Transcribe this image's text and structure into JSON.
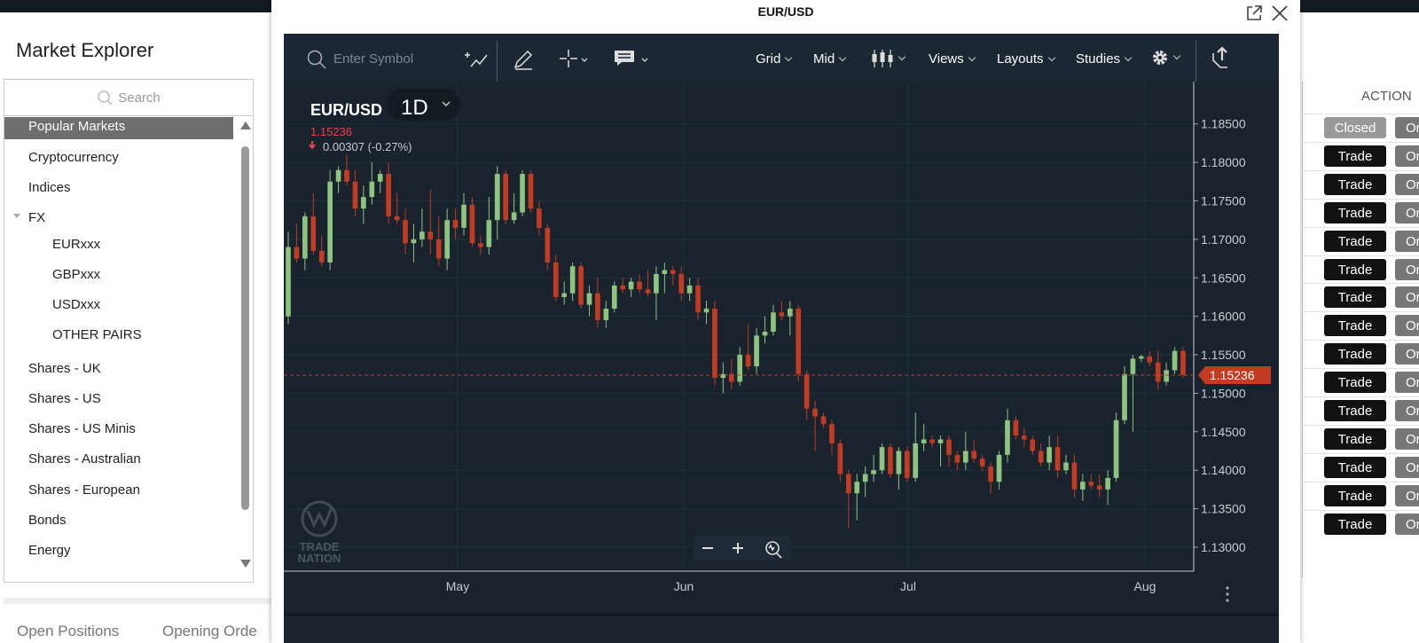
{
  "explorer": {
    "title": "Market Explorer",
    "search_placeholder": "Search",
    "items": [
      {
        "label": "Popular Markets",
        "level": 0,
        "selected": true
      },
      {
        "label": "Cryptocurrency",
        "level": 0
      },
      {
        "label": "Indices",
        "level": 0
      },
      {
        "label": "FX",
        "level": 0,
        "expanded": true
      },
      {
        "label": "EURxxx",
        "level": 1
      },
      {
        "label": "GBPxxx",
        "level": 1
      },
      {
        "label": "USDxxx",
        "level": 1
      },
      {
        "label": "OTHER PAIRS",
        "level": 1
      },
      {
        "label": "Shares - UK",
        "level": 0
      },
      {
        "label": "Shares - US",
        "level": 0
      },
      {
        "label": "Shares - US Minis",
        "level": 0
      },
      {
        "label": "Shares - Australian",
        "level": 0
      },
      {
        "label": "Shares - European",
        "level": 0
      },
      {
        "label": "Bonds",
        "level": 0
      },
      {
        "label": "Energy",
        "level": 0
      }
    ]
  },
  "bottom_tabs": [
    "Open Positions",
    "Opening Orde"
  ],
  "right_panel": {
    "header": "ACTION",
    "first_button": "Closed",
    "trade_label": "Trade",
    "or_label": "Or",
    "row_count": 15
  },
  "modal": {
    "title": "EUR/USD"
  },
  "toolbar": {
    "symbol_placeholder": "Enter Symbol",
    "items": [
      "Grid",
      "Mid",
      "Views",
      "Layouts",
      "Studies"
    ]
  },
  "chart": {
    "symbol": "EUR/USD",
    "interval": "1D",
    "price": "1.15236",
    "change": "0.00307 (-0.27%)",
    "price_tag": "1.15236",
    "watermark_line1": "TRADE",
    "watermark_line2": "NATION",
    "colors": {
      "up": "#8fc380",
      "down": "#c23b22",
      "bg": "#18232e",
      "grid": "#222f3b"
    }
  },
  "chart_data": {
    "type": "candlestick",
    "yaxis_ticks": [
      "1.18500",
      "1.18000",
      "1.17500",
      "1.17000",
      "1.16500",
      "1.16000",
      "1.15500",
      "1.15000",
      "1.14500",
      "1.14000",
      "1.13500",
      "1.13000"
    ],
    "xaxis_ticks": [
      "May",
      "Jun",
      "Jul",
      "Aug"
    ],
    "ylim": [
      1.1285,
      1.1875
    ],
    "last_price": 1.15236,
    "candles": [
      {
        "o": 1.16,
        "h": 1.171,
        "l": 1.159,
        "c": 1.169
      },
      {
        "o": 1.169,
        "h": 1.172,
        "l": 1.167,
        "c": 1.1675
      },
      {
        "o": 1.1675,
        "h": 1.1735,
        "l": 1.166,
        "c": 1.173
      },
      {
        "o": 1.173,
        "h": 1.176,
        "l": 1.168,
        "c": 1.1685
      },
      {
        "o": 1.1685,
        "h": 1.1705,
        "l": 1.1665,
        "c": 1.167
      },
      {
        "o": 1.167,
        "h": 1.179,
        "l": 1.166,
        "c": 1.1775
      },
      {
        "o": 1.1775,
        "h": 1.1795,
        "l": 1.176,
        "c": 1.179
      },
      {
        "o": 1.179,
        "h": 1.181,
        "l": 1.177,
        "c": 1.1775
      },
      {
        "o": 1.1775,
        "h": 1.179,
        "l": 1.173,
        "c": 1.174
      },
      {
        "o": 1.174,
        "h": 1.177,
        "l": 1.172,
        "c": 1.1755
      },
      {
        "o": 1.1755,
        "h": 1.18,
        "l": 1.1745,
        "c": 1.1775
      },
      {
        "o": 1.1775,
        "h": 1.179,
        "l": 1.176,
        "c": 1.1785
      },
      {
        "o": 1.1785,
        "h": 1.18,
        "l": 1.172,
        "c": 1.173
      },
      {
        "o": 1.173,
        "h": 1.176,
        "l": 1.172,
        "c": 1.1725
      },
      {
        "o": 1.1725,
        "h": 1.174,
        "l": 1.168,
        "c": 1.1695
      },
      {
        "o": 1.1695,
        "h": 1.172,
        "l": 1.167,
        "c": 1.17
      },
      {
        "o": 1.17,
        "h": 1.174,
        "l": 1.169,
        "c": 1.171
      },
      {
        "o": 1.171,
        "h": 1.1765,
        "l": 1.168,
        "c": 1.17
      },
      {
        "o": 1.17,
        "h": 1.173,
        "l": 1.1665,
        "c": 1.1675
      },
      {
        "o": 1.1675,
        "h": 1.174,
        "l": 1.166,
        "c": 1.1725
      },
      {
        "o": 1.1725,
        "h": 1.174,
        "l": 1.17,
        "c": 1.1715
      },
      {
        "o": 1.1715,
        "h": 1.176,
        "l": 1.1705,
        "c": 1.1745
      },
      {
        "o": 1.1745,
        "h": 1.1755,
        "l": 1.169,
        "c": 1.1695
      },
      {
        "o": 1.1695,
        "h": 1.1705,
        "l": 1.168,
        "c": 1.169
      },
      {
        "o": 1.169,
        "h": 1.1755,
        "l": 1.168,
        "c": 1.1725
      },
      {
        "o": 1.1725,
        "h": 1.1795,
        "l": 1.17,
        "c": 1.1785
      },
      {
        "o": 1.1785,
        "h": 1.179,
        "l": 1.172,
        "c": 1.1725
      },
      {
        "o": 1.1725,
        "h": 1.176,
        "l": 1.172,
        "c": 1.1735
      },
      {
        "o": 1.1735,
        "h": 1.179,
        "l": 1.173,
        "c": 1.1785
      },
      {
        "o": 1.1785,
        "h": 1.179,
        "l": 1.1735,
        "c": 1.174
      },
      {
        "o": 1.174,
        "h": 1.175,
        "l": 1.1705,
        "c": 1.1715
      },
      {
        "o": 1.1715,
        "h": 1.172,
        "l": 1.166,
        "c": 1.167
      },
      {
        "o": 1.167,
        "h": 1.168,
        "l": 1.162,
        "c": 1.1625
      },
      {
        "o": 1.1625,
        "h": 1.1645,
        "l": 1.1615,
        "c": 1.163
      },
      {
        "o": 1.163,
        "h": 1.167,
        "l": 1.162,
        "c": 1.1665
      },
      {
        "o": 1.1665,
        "h": 1.167,
        "l": 1.161,
        "c": 1.1615
      },
      {
        "o": 1.1615,
        "h": 1.164,
        "l": 1.16,
        "c": 1.163
      },
      {
        "o": 1.163,
        "h": 1.165,
        "l": 1.1585,
        "c": 1.1595
      },
      {
        "o": 1.1595,
        "h": 1.162,
        "l": 1.1585,
        "c": 1.161
      },
      {
        "o": 1.161,
        "h": 1.1645,
        "l": 1.1605,
        "c": 1.164
      },
      {
        "o": 1.164,
        "h": 1.165,
        "l": 1.163,
        "c": 1.1635
      },
      {
        "o": 1.1635,
        "h": 1.165,
        "l": 1.1625,
        "c": 1.1645
      },
      {
        "o": 1.1645,
        "h": 1.1655,
        "l": 1.163,
        "c": 1.1635
      },
      {
        "o": 1.1635,
        "h": 1.166,
        "l": 1.1625,
        "c": 1.163
      },
      {
        "o": 1.163,
        "h": 1.1665,
        "l": 1.1595,
        "c": 1.1655
      },
      {
        "o": 1.1655,
        "h": 1.167,
        "l": 1.163,
        "c": 1.166
      },
      {
        "o": 1.166,
        "h": 1.1665,
        "l": 1.164,
        "c": 1.1655
      },
      {
        "o": 1.1655,
        "h": 1.1665,
        "l": 1.162,
        "c": 1.163
      },
      {
        "o": 1.163,
        "h": 1.165,
        "l": 1.162,
        "c": 1.164
      },
      {
        "o": 1.164,
        "h": 1.165,
        "l": 1.1595,
        "c": 1.1605
      },
      {
        "o": 1.1605,
        "h": 1.162,
        "l": 1.159,
        "c": 1.161
      },
      {
        "o": 1.161,
        "h": 1.162,
        "l": 1.151,
        "c": 1.152
      },
      {
        "o": 1.152,
        "h": 1.154,
        "l": 1.15,
        "c": 1.1525
      },
      {
        "o": 1.1525,
        "h": 1.1545,
        "l": 1.1505,
        "c": 1.1515
      },
      {
        "o": 1.1515,
        "h": 1.156,
        "l": 1.151,
        "c": 1.155
      },
      {
        "o": 1.155,
        "h": 1.159,
        "l": 1.153,
        "c": 1.1535
      },
      {
        "o": 1.1535,
        "h": 1.1585,
        "l": 1.1525,
        "c": 1.1575
      },
      {
        "o": 1.1575,
        "h": 1.16,
        "l": 1.1565,
        "c": 1.158
      },
      {
        "o": 1.158,
        "h": 1.1615,
        "l": 1.1575,
        "c": 1.1605
      },
      {
        "o": 1.1605,
        "h": 1.162,
        "l": 1.1595,
        "c": 1.16
      },
      {
        "o": 1.16,
        "h": 1.162,
        "l": 1.1575,
        "c": 1.161
      },
      {
        "o": 1.161,
        "h": 1.1615,
        "l": 1.1515,
        "c": 1.1525
      },
      {
        "o": 1.1525,
        "h": 1.153,
        "l": 1.1465,
        "c": 1.148
      },
      {
        "o": 1.148,
        "h": 1.149,
        "l": 1.1425,
        "c": 1.147
      },
      {
        "o": 1.147,
        "h": 1.1475,
        "l": 1.1455,
        "c": 1.146
      },
      {
        "o": 1.146,
        "h": 1.1465,
        "l": 1.142,
        "c": 1.1435
      },
      {
        "o": 1.1435,
        "h": 1.144,
        "l": 1.1385,
        "c": 1.1395
      },
      {
        "o": 1.1395,
        "h": 1.14,
        "l": 1.1325,
        "c": 1.137
      },
      {
        "o": 1.137,
        "h": 1.1395,
        "l": 1.1335,
        "c": 1.1385
      },
      {
        "o": 1.1385,
        "h": 1.1405,
        "l": 1.1365,
        "c": 1.1395
      },
      {
        "o": 1.1395,
        "h": 1.142,
        "l": 1.1385,
        "c": 1.14
      },
      {
        "o": 1.14,
        "h": 1.1435,
        "l": 1.1395,
        "c": 1.143
      },
      {
        "o": 1.143,
        "h": 1.1435,
        "l": 1.139,
        "c": 1.1395
      },
      {
        "o": 1.1395,
        "h": 1.143,
        "l": 1.1375,
        "c": 1.1425
      },
      {
        "o": 1.1425,
        "h": 1.143,
        "l": 1.1385,
        "c": 1.139
      },
      {
        "o": 1.139,
        "h": 1.1475,
        "l": 1.1385,
        "c": 1.1435
      },
      {
        "o": 1.1435,
        "h": 1.146,
        "l": 1.1425,
        "c": 1.144
      },
      {
        "o": 1.144,
        "h": 1.1445,
        "l": 1.143,
        "c": 1.1435
      },
      {
        "o": 1.1435,
        "h": 1.1445,
        "l": 1.1405,
        "c": 1.144
      },
      {
        "o": 1.144,
        "h": 1.1445,
        "l": 1.1405,
        "c": 1.142
      },
      {
        "o": 1.142,
        "h": 1.1425,
        "l": 1.14,
        "c": 1.141
      },
      {
        "o": 1.141,
        "h": 1.145,
        "l": 1.14,
        "c": 1.1425
      },
      {
        "o": 1.1425,
        "h": 1.144,
        "l": 1.141,
        "c": 1.1415
      },
      {
        "o": 1.1415,
        "h": 1.142,
        "l": 1.14,
        "c": 1.1405
      },
      {
        "o": 1.1405,
        "h": 1.141,
        "l": 1.137,
        "c": 1.1385
      },
      {
        "o": 1.1385,
        "h": 1.1425,
        "l": 1.1375,
        "c": 1.142
      },
      {
        "o": 1.142,
        "h": 1.148,
        "l": 1.141,
        "c": 1.1465
      },
      {
        "o": 1.1465,
        "h": 1.147,
        "l": 1.144,
        "c": 1.1445
      },
      {
        "o": 1.1445,
        "h": 1.1455,
        "l": 1.143,
        "c": 1.144
      },
      {
        "o": 1.144,
        "h": 1.1445,
        "l": 1.142,
        "c": 1.1425
      },
      {
        "o": 1.1425,
        "h": 1.1435,
        "l": 1.1405,
        "c": 1.141
      },
      {
        "o": 1.141,
        "h": 1.1445,
        "l": 1.14,
        "c": 1.143
      },
      {
        "o": 1.143,
        "h": 1.1445,
        "l": 1.139,
        "c": 1.14
      },
      {
        "o": 1.14,
        "h": 1.142,
        "l": 1.1395,
        "c": 1.141
      },
      {
        "o": 1.141,
        "h": 1.142,
        "l": 1.1365,
        "c": 1.1375
      },
      {
        "o": 1.1375,
        "h": 1.1395,
        "l": 1.136,
        "c": 1.1385
      },
      {
        "o": 1.1385,
        "h": 1.1395,
        "l": 1.1375,
        "c": 1.138
      },
      {
        "o": 1.138,
        "h": 1.1395,
        "l": 1.1365,
        "c": 1.1375
      },
      {
        "o": 1.1375,
        "h": 1.14,
        "l": 1.1355,
        "c": 1.139
      },
      {
        "o": 1.139,
        "h": 1.1475,
        "l": 1.1385,
        "c": 1.1465
      },
      {
        "o": 1.1465,
        "h": 1.1535,
        "l": 1.146,
        "c": 1.1525
      },
      {
        "o": 1.1525,
        "h": 1.155,
        "l": 1.145,
        "c": 1.1545
      },
      {
        "o": 1.1545,
        "h": 1.155,
        "l": 1.154,
        "c": 1.1548
      },
      {
        "o": 1.1548,
        "h": 1.1555,
        "l": 1.1535,
        "c": 1.154
      },
      {
        "o": 1.154,
        "h": 1.1555,
        "l": 1.1505,
        "c": 1.1515
      },
      {
        "o": 1.1515,
        "h": 1.154,
        "l": 1.151,
        "c": 1.153
      },
      {
        "o": 1.153,
        "h": 1.156,
        "l": 1.1525,
        "c": 1.1555
      },
      {
        "o": 1.1555,
        "h": 1.156,
        "l": 1.152,
        "c": 1.1524
      }
    ]
  }
}
